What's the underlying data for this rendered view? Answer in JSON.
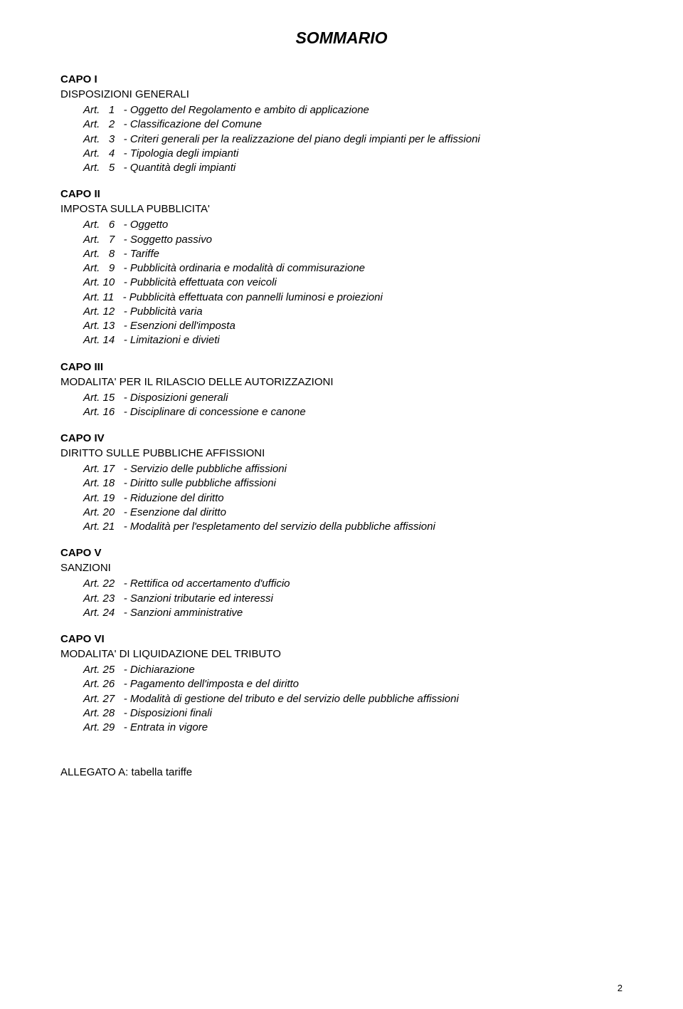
{
  "title": "SOMMARIO",
  "sections": [
    {
      "head": "CAPO I",
      "sub": "DISPOSIZIONI GENERALI",
      "items": [
        "Art.   1   - Oggetto del Regolamento e ambito di applicazione",
        "Art.   2   - Classificazione del Comune",
        "Art.   3   - Criteri generali per la realizzazione del piano degli impianti per le affissioni",
        "Art.   4   - Tipologia degli impianti",
        "Art.   5   - Quantità degli impianti"
      ]
    },
    {
      "head": "CAPO II",
      "sub": "IMPOSTA SULLA PUBBLICITA'",
      "items": [
        "Art.   6   - Oggetto",
        "Art.   7   - Soggetto passivo",
        "Art.   8   - Tariffe",
        "Art.   9   - Pubblicità ordinaria e modalità di commisurazione",
        "Art. 10   - Pubblicità effettuata con veicoli",
        "Art. 11   - Pubblicità effettuata con pannelli luminosi e proiezioni",
        "Art. 12   - Pubblicità varia",
        "Art. 13   - Esenzioni dell'imposta",
        "Art. 14   - Limitazioni e divieti"
      ]
    },
    {
      "head": "CAPO III",
      "sub": "MODALITA' PER IL RILASCIO DELLE AUTORIZZAZIONI",
      "items": [
        "Art. 15   - Disposizioni generali",
        "Art. 16   - Disciplinare di concessione e canone"
      ]
    },
    {
      "head": "CAPO IV",
      "sub": "DIRITTO SULLE PUBBLICHE AFFISSIONI",
      "items": [
        "Art. 17   - Servizio delle pubbliche affissioni",
        "Art. 18   - Diritto sulle pubbliche affissioni",
        "Art. 19   - Riduzione del diritto",
        "Art. 20   - Esenzione dal diritto",
        "Art. 21   - Modalità per l'espletamento del servizio della pubbliche affissioni"
      ]
    },
    {
      "head": "CAPO V",
      "sub": "SANZIONI",
      "items": [
        "Art. 22   - Rettifica od accertamento d'ufficio",
        "Art. 23   - Sanzioni tributarie ed interessi",
        "Art. 24   - Sanzioni amministrative"
      ]
    },
    {
      "head": "CAPO VI",
      "sub": "MODALITA' DI LIQUIDAZIONE DEL TRIBUTO",
      "items": [
        "Art. 25   - Dichiarazione",
        "Art. 26   - Pagamento dell'imposta e del diritto",
        "Art. 27   - Modalità di gestione del tributo e del servizio delle pubbliche affissioni",
        "Art. 28   - Disposizioni finali",
        "Art. 29   - Entrata in vigore"
      ]
    }
  ],
  "allegato": "ALLEGATO A: tabella tariffe",
  "page_number": "2"
}
